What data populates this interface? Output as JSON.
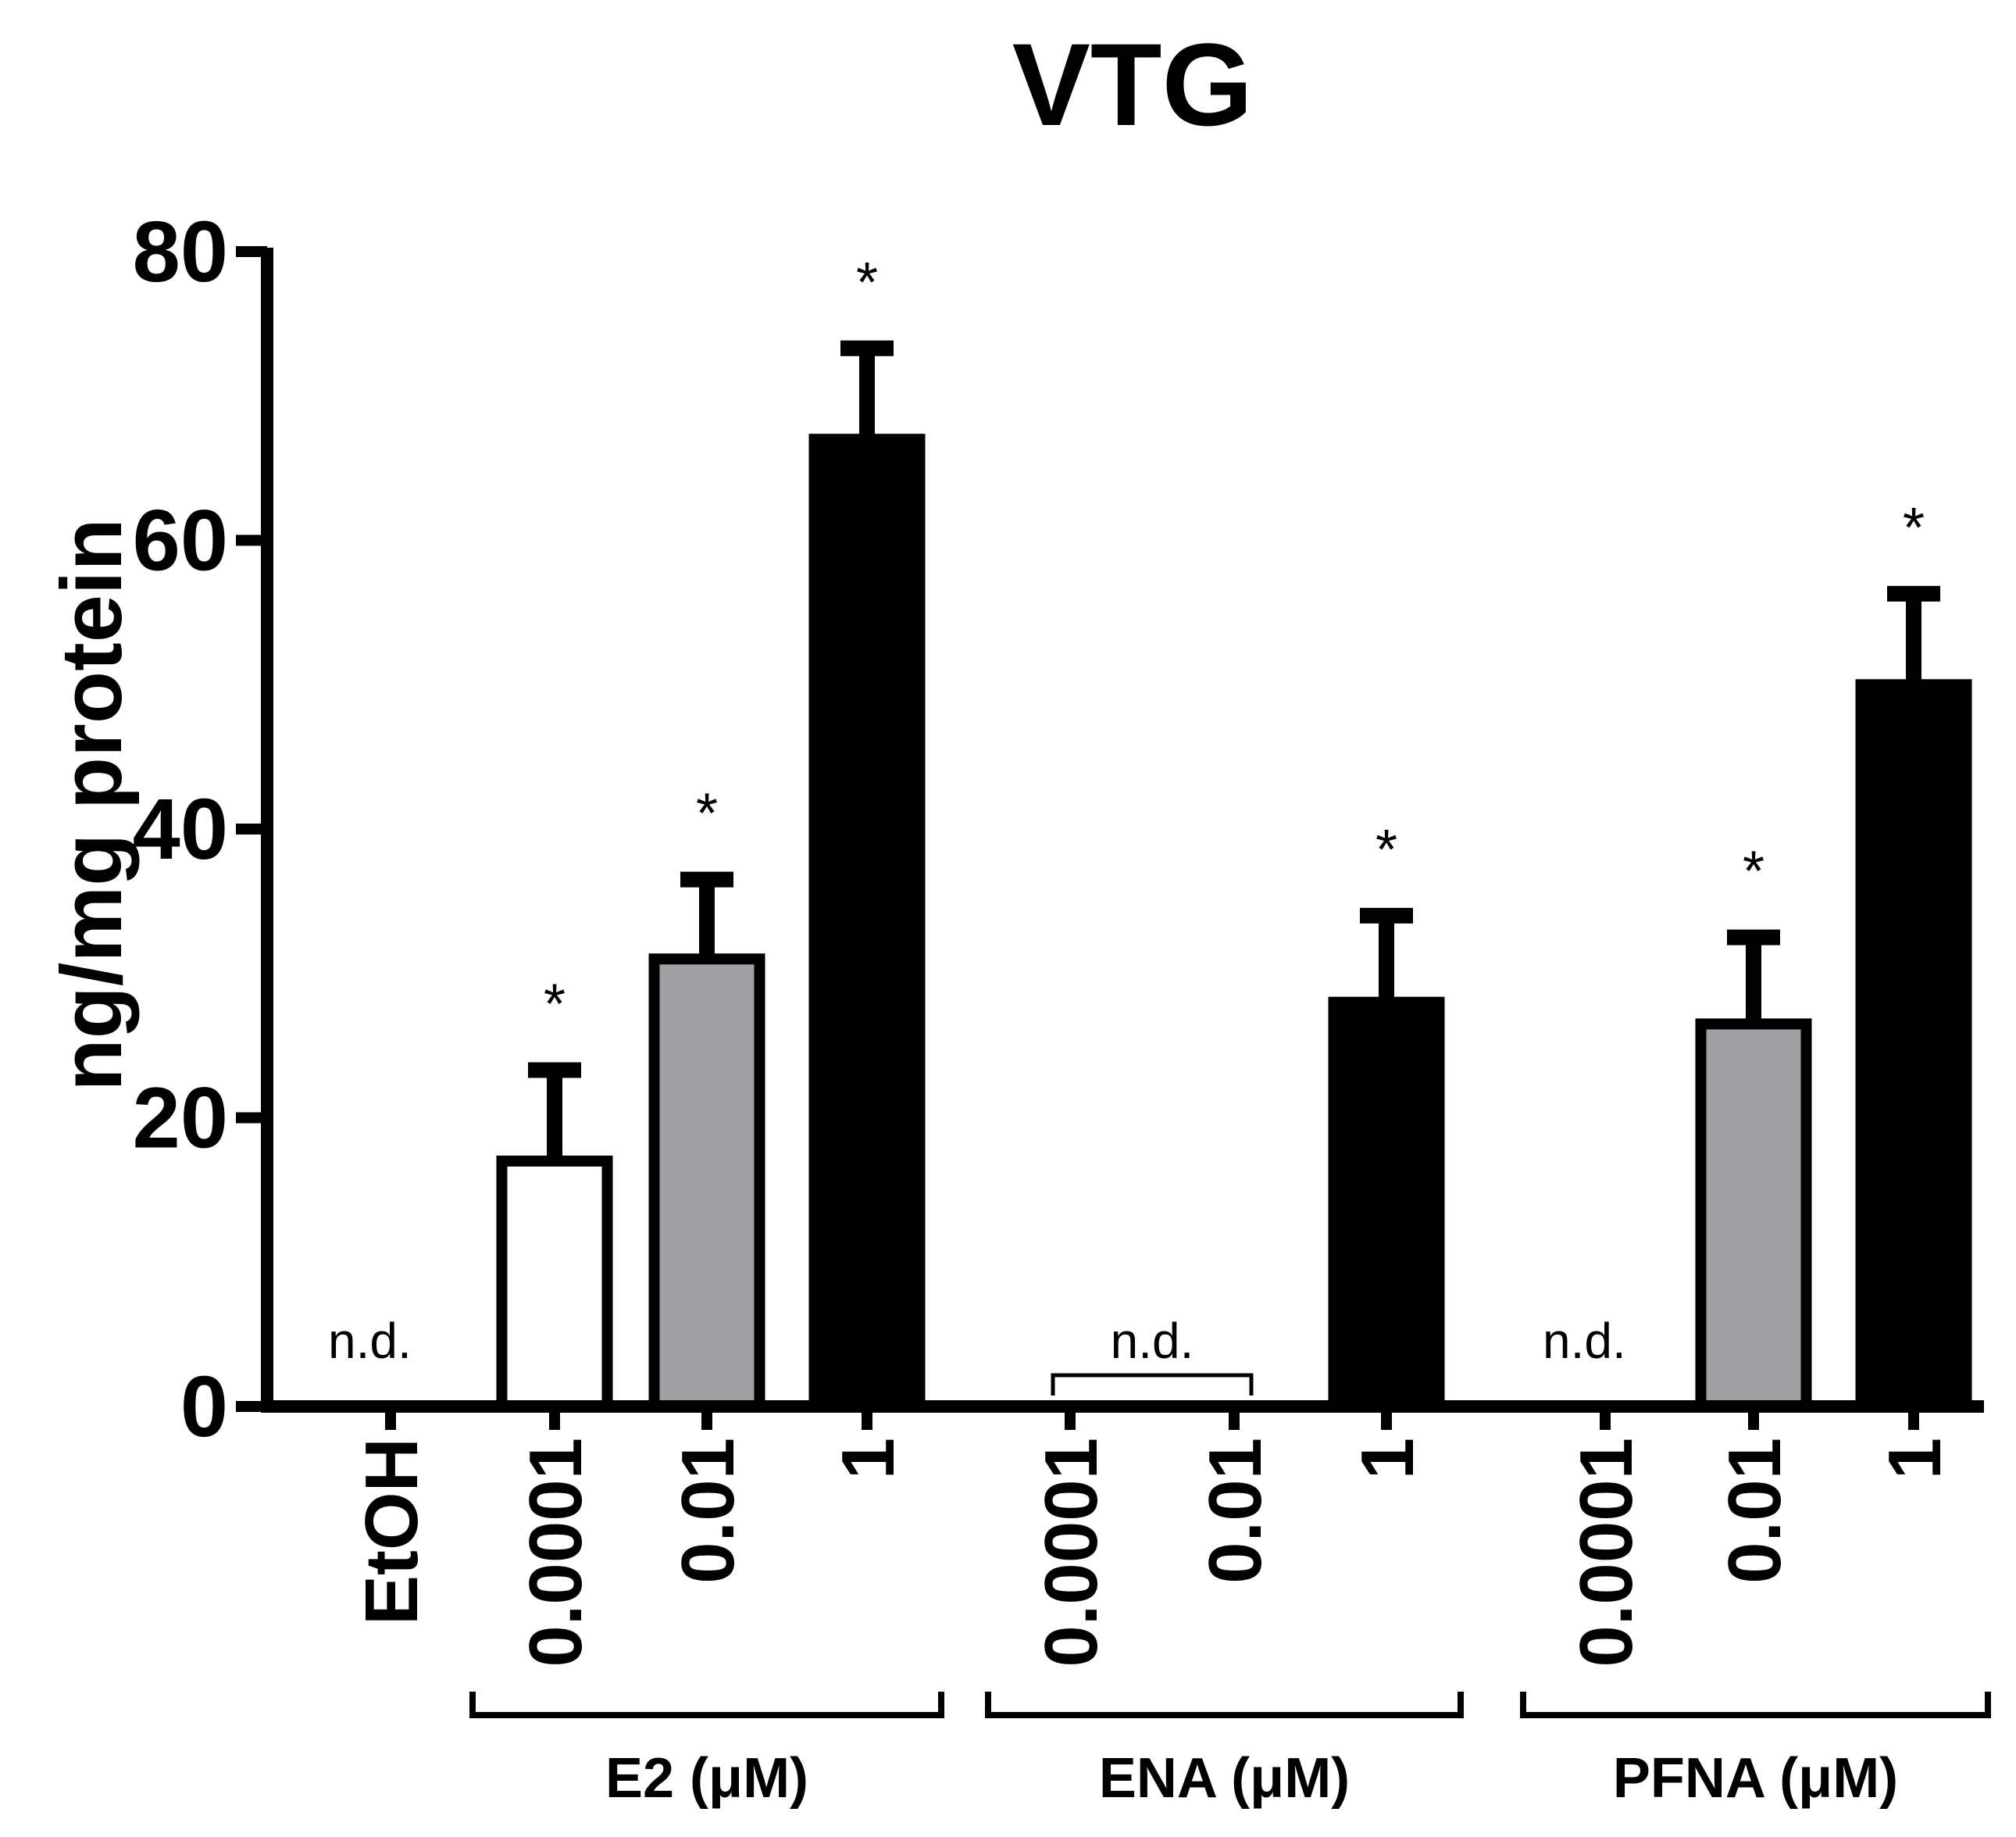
{
  "chart_data": {
    "type": "bar",
    "title": "VTG",
    "ylabel": "ng/mg protein",
    "xlabel": "",
    "ylim": [
      0,
      80
    ],
    "yticks": [
      0,
      20,
      40,
      60,
      80
    ],
    "colors": {
      "white": "#ffffff",
      "gray": "#a09fa4",
      "black": "#000000"
    },
    "bars": [
      {
        "label": "EtOH",
        "value": 0,
        "error": 0,
        "fill": "white",
        "nd": true,
        "sig": false
      },
      {
        "label": "0.0001",
        "value": 17,
        "error": 6.3,
        "fill": "white",
        "nd": false,
        "sig": true
      },
      {
        "label": "0.01",
        "value": 31,
        "error": 5.5,
        "fill": "gray",
        "nd": false,
        "sig": true
      },
      {
        "label": "1",
        "value": 67,
        "error": 6.3,
        "fill": "black",
        "nd": false,
        "sig": true
      },
      {
        "label": "0.0001",
        "value": 0,
        "error": 0,
        "fill": "white",
        "nd": true,
        "sig": false
      },
      {
        "label": "0.01",
        "value": 0,
        "error": 0,
        "fill": "gray",
        "nd": true,
        "sig": false
      },
      {
        "label": "1",
        "value": 28,
        "error": 6,
        "fill": "black",
        "nd": false,
        "sig": true
      },
      {
        "label": "0.0001",
        "value": 0,
        "error": 0,
        "fill": "white",
        "nd": true,
        "sig": false
      },
      {
        "label": "0.01",
        "value": 26.5,
        "error": 6,
        "fill": "gray",
        "nd": false,
        "sig": true
      },
      {
        "label": "1",
        "value": 50,
        "error": 6.3,
        "fill": "black",
        "nd": false,
        "sig": true
      }
    ],
    "nd_label": "n.d.",
    "sig_marker": "*",
    "groups": [
      {
        "label": "E2 (μM)",
        "bars": [
          1,
          3
        ]
      },
      {
        "label": "ENA (μM)",
        "bars": [
          4,
          6
        ]
      },
      {
        "label": "PFNA (μM)",
        "bars": [
          7,
          9
        ]
      }
    ]
  }
}
